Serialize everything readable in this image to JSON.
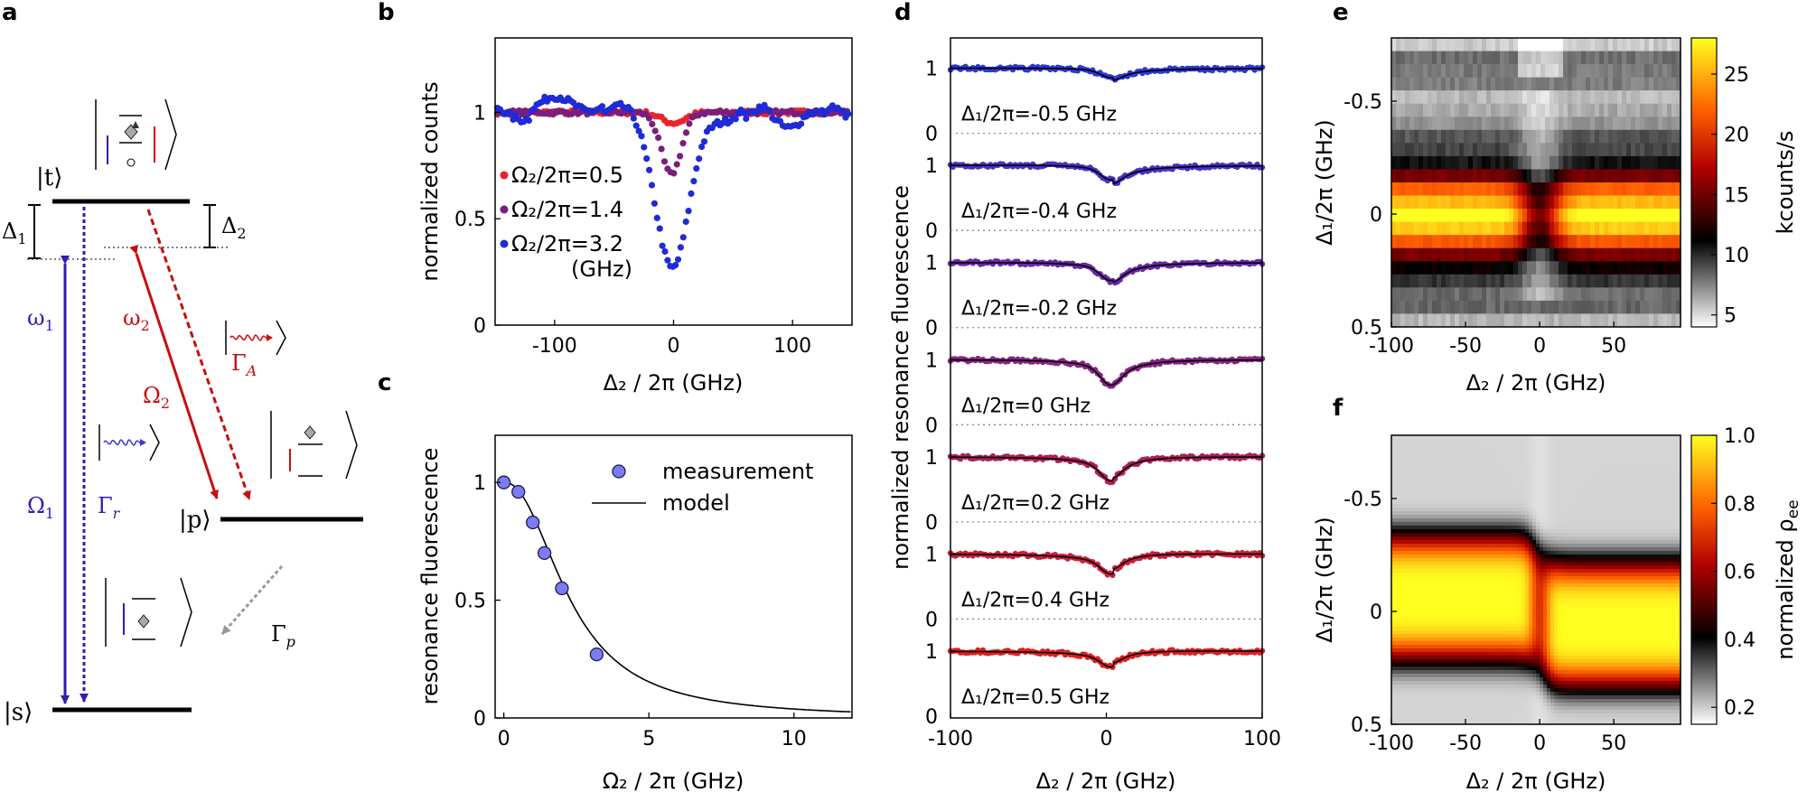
{
  "panel_labels": {
    "a": "a",
    "b": "b",
    "c": "c",
    "d": "d",
    "e": "e",
    "f": "f"
  },
  "colors": {
    "blue": "#2e1fb0",
    "red": "#c80e0e",
    "dot_red": "#e8232a",
    "dot_purple": "#7a1e7e",
    "dot_blue": "#1f2bd6",
    "meas_fill": "#7b7cf0"
  },
  "diagram": {
    "level_t": "|t⟩",
    "level_p": "|p⟩",
    "level_s": "|s⟩",
    "delta1": "Δ",
    "delta1_sub": "1",
    "delta2": "Δ",
    "delta2_sub": "2",
    "omega1_small": "ω",
    "omega1_small_sub": "1",
    "omega2_small": "ω",
    "omega2_small_sub": "2",
    "Omega1": "Ω",
    "Omega1_sub": "1",
    "Omega2": "Ω",
    "Omega2_sub": "2",
    "gamma_r": "Γ",
    "gamma_r_sub": "r",
    "gamma_A": "Γ",
    "gamma_A_sub": "A",
    "gamma_p": "Γ",
    "gamma_p_sub": "p"
  },
  "chart_data": [
    {
      "id": "b",
      "type": "scatter",
      "xlabel": "Δ₂ / 2π (GHz)",
      "ylabel": "normalized counts",
      "xlim": [
        -150,
        150
      ],
      "ylim": [
        0,
        1.35
      ],
      "xticks": [
        -100,
        0,
        100
      ],
      "yticks": [
        0,
        0.5,
        1
      ],
      "ytick_labels": [
        "0",
        "0.5",
        "1"
      ],
      "legend_unit": "(GHz)",
      "series": [
        {
          "name": "Ω₂/2π=0.5",
          "color": "#e8232a",
          "center": 0,
          "width": 14,
          "depth": 0.05
        },
        {
          "name": "Ω₂/2π=1.4",
          "color": "#7a1e7e",
          "center": -2,
          "width": 12,
          "depth": 0.29
        },
        {
          "name": "Ω₂/2π=3.2",
          "color": "#1f2bd6",
          "center": 0,
          "width": 20,
          "depth": 0.73
        }
      ]
    },
    {
      "id": "c",
      "type": "scatter",
      "xlabel": "Ω₂ / 2π (GHz)",
      "ylabel": "resonance fluorescence",
      "xlim": [
        -0.3,
        12
      ],
      "ylim": [
        0,
        1.2
      ],
      "xticks": [
        0,
        5,
        10
      ],
      "yticks": [
        0,
        0.5,
        1
      ],
      "ytick_labels": [
        "0",
        "0.5",
        "1"
      ],
      "measurement": {
        "name": "measurement",
        "x": [
          0,
          0.5,
          1.0,
          1.4,
          2.0,
          3.2
        ],
        "y": [
          1.0,
          0.96,
          0.83,
          0.7,
          0.55,
          0.27
        ]
      },
      "model": {
        "name": "model",
        "formula": "1/(1+(x/2.3)^2.2)"
      }
    },
    {
      "id": "d",
      "type": "scatter",
      "xlabel": "Δ₂ / 2π (GHz)",
      "ylabel": "normalized resonance fluorescence",
      "xlim": [
        -100,
        100
      ],
      "xticks": [
        -100,
        0,
        100
      ],
      "traces": [
        {
          "label": "Δ₁/2π=-0.5 GHz",
          "color": "#2e36d6",
          "dip": 0.17,
          "asym": 0.08
        },
        {
          "label": "Δ₁/2π=-0.4 GHz",
          "color": "#4a30c8",
          "dip": 0.26,
          "asym": 0.12
        },
        {
          "label": "Δ₁/2π=-0.2 GHz",
          "color": "#6a28a8",
          "dip": 0.3,
          "asym": 0.06
        },
        {
          "label": "Δ₁/2π=0 GHz",
          "color": "#8a2388",
          "dip": 0.4,
          "asym": 0.0
        },
        {
          "label": "Δ₁/2π=0.2 GHz",
          "color": "#b01e5a",
          "dip": 0.36,
          "asym": -0.06
        },
        {
          "label": "Δ₁/2π=0.4 GHz",
          "color": "#cc1e3a",
          "dip": 0.28,
          "asym": -0.12
        },
        {
          "label": "Δ₁/2π=0.5 GHz",
          "color": "#e01e1e",
          "dip": 0.22,
          "asym": -0.1
        }
      ]
    },
    {
      "id": "e",
      "type": "heatmap",
      "xlabel": "Δ₂ / 2π (GHz)",
      "ylabel": "Δ₁/2π (GHz)",
      "xlim": [
        -100,
        95
      ],
      "ylim": [
        -0.78,
        0.5
      ],
      "xticks": [
        -100,
        -50,
        0,
        50
      ],
      "yticks": [
        -0.5,
        0,
        0.5
      ],
      "ytick_labels": [
        "-0.5",
        "0",
        "0.5"
      ],
      "colorbar": {
        "label": "kcounts/s",
        "range": [
          4,
          28
        ],
        "ticks": [
          5,
          10,
          15,
          20,
          25
        ]
      }
    },
    {
      "id": "f",
      "type": "heatmap",
      "xlabel": "Δ₂ / 2π (GHz)",
      "ylabel": "Δ₁/2π (GHz)",
      "xlim": [
        -100,
        95
      ],
      "ylim": [
        -0.78,
        0.5
      ],
      "xticks": [
        -100,
        -50,
        0,
        50
      ],
      "yticks": [
        -0.5,
        0,
        0.5
      ],
      "ytick_labels": [
        "-0.5",
        "0",
        "0.5"
      ],
      "colorbar": {
        "label": "normalized ρ",
        "label_sub": "ee",
        "range": [
          0.15,
          1.0
        ],
        "ticks": [
          0.2,
          0.4,
          0.6,
          0.8,
          1.0
        ],
        "tick_labels": [
          "0.2",
          "0.4",
          "0.6",
          "0.8",
          "1.0"
        ]
      }
    }
  ]
}
